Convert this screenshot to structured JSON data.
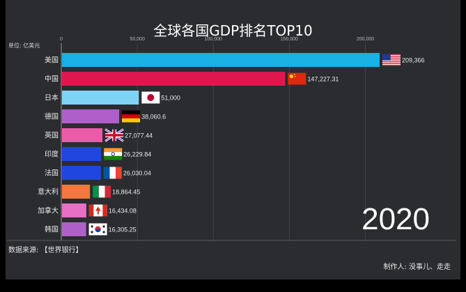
{
  "chart_data": {
    "type": "bar",
    "orientation": "horizontal",
    "title": "全球各国GDP排名TOP10",
    "unit_label": "单位: 亿美元",
    "year": "2020",
    "categories": [
      "美国",
      "中国",
      "日本",
      "德国",
      "英国",
      "印度",
      "法国",
      "意大利",
      "加拿大",
      "韩国"
    ],
    "values": [
      209366,
      147227.31,
      51000,
      38060.6,
      27077.44,
      26229.84,
      26030.04,
      18864.45,
      16434.08,
      16305.25
    ],
    "value_labels": [
      "209,366",
      "147,227.31",
      "51,000",
      "38,060.6",
      "27,077.44",
      "26,229.84",
      "26,030.04",
      "18,864.45",
      "16,434.08",
      "16,305.25"
    ],
    "bar_colors": [
      "#19b1e6",
      "#e0174e",
      "#7fd3f5",
      "#b05fca",
      "#ea5ba8",
      "#1f47e0",
      "#1f47e0",
      "#f2783f",
      "#e96fc5",
      "#b05fca"
    ],
    "flags": [
      "us-flag",
      "cn-flag",
      "jp-flag",
      "de-flag",
      "gb-flag",
      "in-flag",
      "fr-flag",
      "it-flag",
      "ca-flag",
      "kr-flag"
    ],
    "xticks": [
      0,
      50000,
      100000,
      150000,
      200000
    ],
    "xtick_labels": [
      "0",
      "50,000",
      "100,000",
      "150,000",
      "200,000"
    ],
    "xlim": [
      0,
      209366
    ],
    "grid": true
  },
  "footer": {
    "source": "数据来源: 【世界银行】",
    "credit": "制作人: 没事儿、走走"
  }
}
